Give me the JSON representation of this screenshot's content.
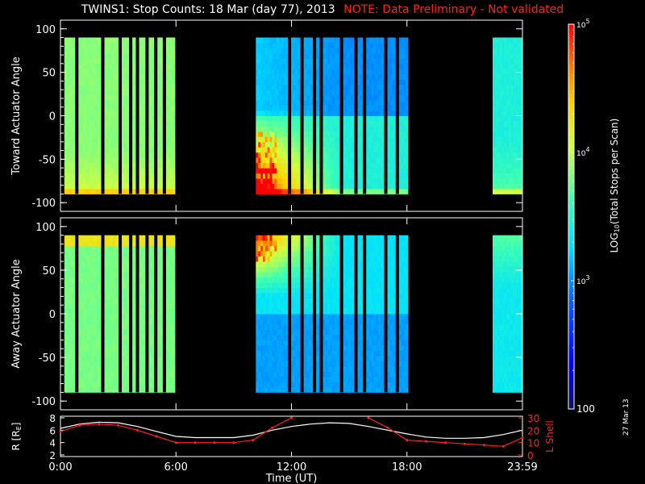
{
  "title": {
    "main": "TWINS1: Stop Counts: 18 Mar (day  77), 2013",
    "note": "NOTE: Data Preliminary - Not validated"
  },
  "stamp": "27 Mar 13",
  "colors": {
    "background": "#000000",
    "foreground": "#ffffff",
    "note": "#ff2020",
    "r_line": "#ffffff",
    "lshell_line": "#ff2020"
  },
  "chart_data": [
    {
      "type": "heatmap",
      "id": "toward",
      "ylabel": "Toward Actuator Angle",
      "ylim": [
        -110,
        110
      ],
      "yticks": [
        100,
        50,
        0,
        -50,
        -100
      ],
      "xlim_hours": [
        0,
        24
      ],
      "angle_range": [
        -90,
        90
      ],
      "data_segments_hours": [
        [
          0.2,
          5.95
        ],
        [
          10.15,
          18.05
        ],
        [
          22.45,
          24
        ]
      ],
      "gaps_hours": [
        0.85,
        2.2,
        3.1,
        3.65,
        4.0,
        4.5,
        4.95,
        5.4,
        11.9,
        12.55,
        13.2,
        13.55,
        14.6,
        15.35,
        15.8,
        16.9,
        17.5
      ],
      "trend": "low-count (~10^3) at high positive angles after 12:00, high-count (~10^4.5) near -80 deg; strongest counts 10:00-14:00 below 0 deg"
    },
    {
      "type": "heatmap",
      "id": "away",
      "ylabel": "Away Actuator Angle",
      "xlabel": "",
      "ylim": [
        -110,
        110
      ],
      "yticks": [
        100,
        50,
        0,
        -50,
        -100
      ],
      "xlim_hours": [
        0,
        24
      ],
      "angle_range": [
        -90,
        90
      ],
      "data_segments_hours": [
        [
          0.2,
          5.95
        ],
        [
          10.15,
          18.05
        ],
        [
          22.45,
          24
        ]
      ],
      "gaps_hours": [
        0.85,
        2.2,
        3.1,
        3.65,
        4.0,
        4.5,
        4.95,
        5.4,
        11.9,
        12.55,
        13.2,
        13.55,
        14.6,
        15.35,
        15.8,
        16.9,
        17.5
      ],
      "trend": "high counts near +80 deg; low counts (~10^3) below 0 deg after 12:00"
    },
    {
      "type": "line",
      "id": "ephemeris",
      "xlabel": "Time (UT)",
      "xlim_hours": [
        0,
        24
      ],
      "xticks": [
        "0:00",
        "6:00",
        "12:00",
        "18:00",
        "23:59"
      ],
      "xtick_hours": [
        0,
        6,
        12,
        18,
        24
      ],
      "left_axis": {
        "label": "R [R",
        "sub": "E",
        "label_end": "]",
        "ylim": [
          2,
          8
        ],
        "ticks": [
          "8",
          "6",
          "4",
          "2"
        ],
        "tick_values": [
          8,
          6,
          4,
          2
        ]
      },
      "right_axis": {
        "label": "L Shell",
        "ylim": [
          0,
          30
        ],
        "ticks": [
          "30",
          "20",
          "10",
          "0"
        ],
        "tick_values": [
          30,
          20,
          10,
          0
        ]
      },
      "series": [
        {
          "axis": "left",
          "x": [
            0,
            1,
            2,
            3,
            4,
            5,
            6,
            7,
            8,
            9,
            10,
            11,
            12,
            13,
            14,
            15,
            16,
            17,
            18,
            19,
            20,
            21,
            22,
            23,
            24
          ],
          "y": [
            6.3,
            7.0,
            7.3,
            7.2,
            6.6,
            5.8,
            5.0,
            4.8,
            4.8,
            4.8,
            5.2,
            6.0,
            6.6,
            7.0,
            7.2,
            7.1,
            6.6,
            6.0,
            5.4,
            4.9,
            4.7,
            4.7,
            4.8,
            5.3,
            6.0
          ]
        },
        {
          "axis": "right",
          "x": [
            0,
            1,
            2,
            3,
            4,
            5,
            6,
            7,
            8,
            9,
            10,
            11,
            12,
            13,
            14,
            15,
            16,
            17,
            18,
            19,
            20,
            21,
            22,
            23,
            24
          ],
          "y": [
            19,
            24,
            25,
            24,
            20,
            15,
            10,
            10,
            10,
            10,
            12,
            22,
            30,
            null,
            null,
            null,
            30,
            22,
            12,
            11,
            10,
            9,
            8,
            7,
            14
          ]
        }
      ]
    }
  ],
  "colorbar": {
    "label": "LOG",
    "label_sub": "10",
    "label_rest": "(Total Stops per Scan)",
    "range_log": [
      2,
      5
    ],
    "ticks": [
      {
        "text": "10",
        "exp": "5",
        "value": 5
      },
      {
        "text": "10",
        "exp": "4",
        "value": 4
      },
      {
        "text": "10",
        "exp": "3",
        "value": 3
      },
      {
        "text": "100",
        "exp": "",
        "value": 2
      }
    ]
  }
}
